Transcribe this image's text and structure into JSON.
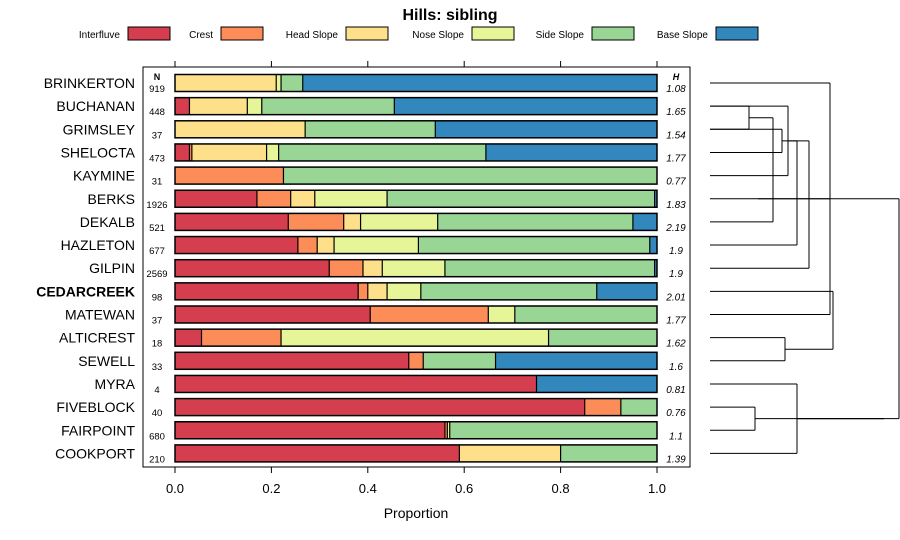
{
  "chart_data": {
    "type": "stacked-bar-horizontal",
    "title": "Hills: sibling",
    "xlabel": "Proportion",
    "xlim": [
      0,
      1
    ],
    "xticks": [
      "0.0",
      "0.2",
      "0.4",
      "0.6",
      "0.8",
      "1.0"
    ],
    "n_header": "N",
    "h_header": "H",
    "legend": [
      {
        "label": "Interfluve",
        "color": "#D53E4F"
      },
      {
        "label": "Crest",
        "color": "#FC8D59"
      },
      {
        "label": "Head Slope",
        "color": "#FEE08B"
      },
      {
        "label": "Nose Slope",
        "color": "#E6F598"
      },
      {
        "label": "Side Slope",
        "color": "#99D594"
      },
      {
        "label": "Base Slope",
        "color": "#3288BD"
      }
    ],
    "rows": [
      {
        "name": "BRINKERTON",
        "n": "919",
        "h": "1.08",
        "bold": false,
        "values": [
          0,
          0,
          0.21,
          0.01,
          0.045,
          0.735
        ]
      },
      {
        "name": "BUCHANAN",
        "n": "448",
        "h": "1.65",
        "bold": false,
        "values": [
          0.03,
          0,
          0.12,
          0.03,
          0.275,
          0.545
        ]
      },
      {
        "name": "GRIMSLEY",
        "n": "37",
        "h": "1.54",
        "bold": false,
        "values": [
          0,
          0,
          0.27,
          0,
          0.27,
          0.46
        ]
      },
      {
        "name": "SHELOCTA",
        "n": "473",
        "h": "1.77",
        "bold": false,
        "values": [
          0.03,
          0.005,
          0.155,
          0.025,
          0.43,
          0.355
        ]
      },
      {
        "name": "KAYMINE",
        "n": "31",
        "h": "0.77",
        "bold": false,
        "values": [
          0,
          0.225,
          0,
          0,
          0.775,
          0
        ]
      },
      {
        "name": "BERKS",
        "n": "1926",
        "h": "1.83",
        "bold": false,
        "values": [
          0.17,
          0.07,
          0.05,
          0.15,
          0.555,
          0.005
        ]
      },
      {
        "name": "DEKALB",
        "n": "521",
        "h": "2.19",
        "bold": false,
        "values": [
          0.235,
          0.115,
          0.035,
          0.16,
          0.405,
          0.05
        ]
      },
      {
        "name": "HAZLETON",
        "n": "677",
        "h": "1.9",
        "bold": false,
        "values": [
          0.255,
          0.04,
          0.035,
          0.175,
          0.48,
          0.015
        ]
      },
      {
        "name": "GILPIN",
        "n": "2569",
        "h": "1.9",
        "bold": false,
        "values": [
          0.32,
          0.07,
          0.04,
          0.13,
          0.435,
          0.005
        ]
      },
      {
        "name": "CEDARCREEK",
        "n": "98",
        "h": "2.01",
        "bold": true,
        "values": [
          0.38,
          0.02,
          0.04,
          0.07,
          0.365,
          0.125
        ]
      },
      {
        "name": "MATEWAN",
        "n": "37",
        "h": "1.77",
        "bold": false,
        "values": [
          0.405,
          0.245,
          0,
          0.055,
          0.295,
          0
        ]
      },
      {
        "name": "ALTICREST",
        "n": "18",
        "h": "1.62",
        "bold": false,
        "values": [
          0.055,
          0.165,
          0,
          0.555,
          0.225,
          0
        ]
      },
      {
        "name": "SEWELL",
        "n": "33",
        "h": "1.6",
        "bold": false,
        "values": [
          0.485,
          0.03,
          0,
          0,
          0.15,
          0.335
        ]
      },
      {
        "name": "MYRA",
        "n": "4",
        "h": "0.81",
        "bold": false,
        "values": [
          0.75,
          0,
          0,
          0,
          0,
          0.25
        ]
      },
      {
        "name": "FIVEBLOCK",
        "n": "40",
        "h": "0.76",
        "bold": false,
        "values": [
          0.85,
          0.075,
          0,
          0,
          0.075,
          0
        ]
      },
      {
        "name": "FAIRPOINT",
        "n": "680",
        "h": "1.1",
        "bold": false,
        "values": [
          0.56,
          0.005,
          0,
          0.005,
          0.43,
          0
        ]
      },
      {
        "name": "COOKPORT",
        "n": "210",
        "h": "1.39",
        "bold": false,
        "values": [
          0.59,
          0,
          0.21,
          0,
          0.2,
          0
        ]
      }
    ],
    "dendrogram": {
      "leaves": [
        "BRINKERTON",
        "BUCHANAN",
        "GRIMSLEY",
        "SHELOCTA",
        "KAYMINE",
        "BERKS",
        "DEKALB",
        "HAZLETON",
        "GILPIN",
        "CEDARCREEK",
        "MATEWAN",
        "ALTICREST",
        "SEWELL",
        "MYRA",
        "FIVEBLOCK",
        "FAIRPOINT",
        "COOKPORT"
      ],
      "merges": [
        [
          [
            0
          ],
          [
            10
          ],
          0.4
        ],
        [
          [
            1
          ],
          [
            2
          ],
          0.13
        ],
        [
          [
            3
          ],
          [
            2
          ],
          0.24
        ],
        [
          [
            4
          ],
          [
            1
          ],
          0.26
        ],
        [
          [
            11
          ],
          [
            12
          ],
          0.25
        ],
        [
          [
            14
          ],
          [
            15
          ],
          0.15
        ],
        [
          [
            13
          ],
          [
            16
          ],
          0.29
        ],
        [
          [
            17
          ],
          [
            5
          ],
          0.16
        ],
        [
          [
            6
          ],
          [
            18
          ],
          0.21
        ],
        [
          [
            7
          ],
          [
            19
          ],
          0.29
        ],
        [
          [
            8
          ],
          [
            20
          ],
          0.33
        ],
        [
          [
            21
          ],
          [
            9
          ],
          0.41
        ],
        [
          [
            22
          ],
          [
            23
          ],
          0.58
        ],
        [
          [
            23
          ],
          [
            24
          ],
          0.63
        ]
      ]
    }
  }
}
